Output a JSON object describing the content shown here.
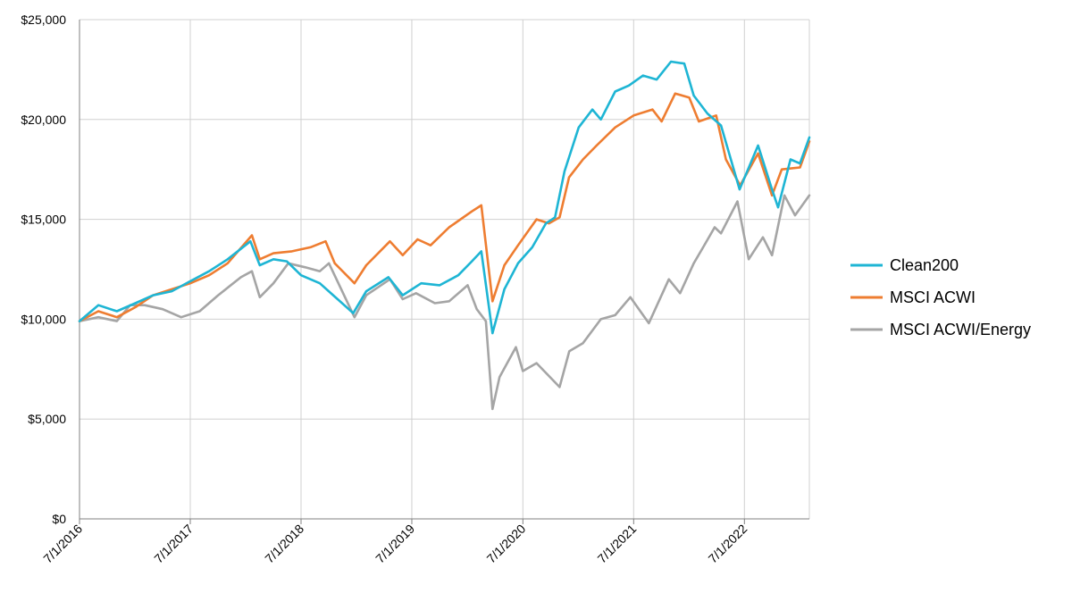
{
  "chart_data": {
    "type": "line",
    "title": "",
    "xlabel": "",
    "ylabel": "",
    "x_ticks": [
      "7/1/2016",
      "7/1/2017",
      "7/1/2018",
      "7/1/2019",
      "7/1/2020",
      "7/1/2021",
      "7/1/2022"
    ],
    "xlim": [
      "2016-07-01",
      "2023-01-31"
    ],
    "ylim": [
      0,
      25000
    ],
    "y_ticks": [
      {
        "value": 0,
        "label": "$0"
      },
      {
        "value": 5000,
        "label": "$5,000"
      },
      {
        "value": 10000,
        "label": "$10,000"
      },
      {
        "value": 15000,
        "label": "$15,000"
      },
      {
        "value": 20000,
        "label": "$20,000"
      },
      {
        "value": 25000,
        "label": "$25,000"
      }
    ],
    "grid": true,
    "legend_position": "right",
    "series": [
      {
        "name": "Clean200",
        "color": "#1eb5d4",
        "points": [
          [
            "2016-07-01",
            9900
          ],
          [
            "2016-09-01",
            10700
          ],
          [
            "2016-11-01",
            10400
          ],
          [
            "2017-01-01",
            10800
          ],
          [
            "2017-03-01",
            11200
          ],
          [
            "2017-05-01",
            11400
          ],
          [
            "2017-07-01",
            11900
          ],
          [
            "2017-09-01",
            12400
          ],
          [
            "2017-11-01",
            13000
          ],
          [
            "2018-01-15",
            13900
          ],
          [
            "2018-02-15",
            12700
          ],
          [
            "2018-04-01",
            13000
          ],
          [
            "2018-05-15",
            12900
          ],
          [
            "2018-07-01",
            12200
          ],
          [
            "2018-09-01",
            11800
          ],
          [
            "2018-10-15",
            11200
          ],
          [
            "2018-12-20",
            10300
          ],
          [
            "2019-02-01",
            11400
          ],
          [
            "2019-04-15",
            12100
          ],
          [
            "2019-06-01",
            11200
          ],
          [
            "2019-08-01",
            11800
          ],
          [
            "2019-10-01",
            11700
          ],
          [
            "2019-12-01",
            12200
          ],
          [
            "2020-01-15",
            12900
          ],
          [
            "2020-02-15",
            13400
          ],
          [
            "2020-03-23",
            9300
          ],
          [
            "2020-05-01",
            11500
          ],
          [
            "2020-06-15",
            12800
          ],
          [
            "2020-08-01",
            13600
          ],
          [
            "2020-09-15",
            14800
          ],
          [
            "2020-10-15",
            15100
          ],
          [
            "2020-11-15",
            17400
          ],
          [
            "2021-01-01",
            19600
          ],
          [
            "2021-02-15",
            20500
          ],
          [
            "2021-03-15",
            20000
          ],
          [
            "2021-05-01",
            21400
          ],
          [
            "2021-06-15",
            21700
          ],
          [
            "2021-08-01",
            22200
          ],
          [
            "2021-09-15",
            22000
          ],
          [
            "2021-11-01",
            22900
          ],
          [
            "2021-12-15",
            22800
          ],
          [
            "2022-01-15",
            21200
          ],
          [
            "2022-03-01",
            20300
          ],
          [
            "2022-04-15",
            19700
          ],
          [
            "2022-06-15",
            16500
          ],
          [
            "2022-08-15",
            18700
          ],
          [
            "2022-09-30",
            16500
          ],
          [
            "2022-10-20",
            15600
          ],
          [
            "2022-11-30",
            18000
          ],
          [
            "2022-12-31",
            17800
          ],
          [
            "2023-01-31",
            19100
          ]
        ]
      },
      {
        "name": "MSCI ACWI",
        "color": "#ee7d31",
        "points": [
          [
            "2016-07-01",
            9900
          ],
          [
            "2016-09-01",
            10400
          ],
          [
            "2016-11-01",
            10100
          ],
          [
            "2017-01-01",
            10600
          ],
          [
            "2017-03-01",
            11200
          ],
          [
            "2017-05-01",
            11500
          ],
          [
            "2017-07-01",
            11800
          ],
          [
            "2017-09-01",
            12200
          ],
          [
            "2017-11-01",
            12800
          ],
          [
            "2018-01-20",
            14200
          ],
          [
            "2018-02-15",
            13000
          ],
          [
            "2018-04-01",
            13300
          ],
          [
            "2018-06-01",
            13400
          ],
          [
            "2018-08-01",
            13600
          ],
          [
            "2018-09-20",
            13900
          ],
          [
            "2018-10-20",
            12800
          ],
          [
            "2018-12-24",
            11800
          ],
          [
            "2019-02-01",
            12700
          ],
          [
            "2019-04-20",
            13900
          ],
          [
            "2019-06-01",
            13200
          ],
          [
            "2019-07-20",
            14000
          ],
          [
            "2019-09-01",
            13700
          ],
          [
            "2019-11-01",
            14600
          ],
          [
            "2020-01-15",
            15400
          ],
          [
            "2020-02-15",
            15700
          ],
          [
            "2020-03-23",
            10900
          ],
          [
            "2020-05-01",
            12700
          ],
          [
            "2020-06-15",
            13700
          ],
          [
            "2020-08-15",
            15000
          ],
          [
            "2020-09-25",
            14800
          ],
          [
            "2020-10-30",
            15100
          ],
          [
            "2020-11-30",
            17100
          ],
          [
            "2021-01-15",
            18000
          ],
          [
            "2021-03-01",
            18700
          ],
          [
            "2021-05-01",
            19600
          ],
          [
            "2021-07-01",
            20200
          ],
          [
            "2021-09-01",
            20500
          ],
          [
            "2021-10-01",
            19900
          ],
          [
            "2021-11-15",
            21300
          ],
          [
            "2021-12-31",
            21100
          ],
          [
            "2022-02-01",
            19900
          ],
          [
            "2022-03-30",
            20200
          ],
          [
            "2022-05-01",
            18000
          ],
          [
            "2022-06-17",
            16700
          ],
          [
            "2022-08-15",
            18300
          ],
          [
            "2022-09-30",
            16200
          ],
          [
            "2022-11-01",
            17500
          ],
          [
            "2022-12-31",
            17600
          ],
          [
            "2023-01-31",
            18900
          ]
        ]
      },
      {
        "name": "MSCI ACWI/Energy",
        "color": "#a5a5a5",
        "points": [
          [
            "2016-07-01",
            9900
          ],
          [
            "2016-09-01",
            10100
          ],
          [
            "2016-11-01",
            9900
          ],
          [
            "2016-12-15",
            10700
          ],
          [
            "2017-02-01",
            10700
          ],
          [
            "2017-04-01",
            10500
          ],
          [
            "2017-06-01",
            10100
          ],
          [
            "2017-08-01",
            10400
          ],
          [
            "2017-10-01",
            11200
          ],
          [
            "2017-12-15",
            12100
          ],
          [
            "2018-01-20",
            12400
          ],
          [
            "2018-02-15",
            11100
          ],
          [
            "2018-04-01",
            11800
          ],
          [
            "2018-05-20",
            12800
          ],
          [
            "2018-07-15",
            12600
          ],
          [
            "2018-09-01",
            12400
          ],
          [
            "2018-10-01",
            12800
          ],
          [
            "2018-12-24",
            10100
          ],
          [
            "2019-02-01",
            11200
          ],
          [
            "2019-04-20",
            12000
          ],
          [
            "2019-06-01",
            11000
          ],
          [
            "2019-07-15",
            11300
          ],
          [
            "2019-09-15",
            10800
          ],
          [
            "2019-11-01",
            10900
          ],
          [
            "2020-01-01",
            11700
          ],
          [
            "2020-01-31",
            10500
          ],
          [
            "2020-03-01",
            9900
          ],
          [
            "2020-03-23",
            5500
          ],
          [
            "2020-04-15",
            7100
          ],
          [
            "2020-06-08",
            8600
          ],
          [
            "2020-07-01",
            7400
          ],
          [
            "2020-08-15",
            7800
          ],
          [
            "2020-10-30",
            6600
          ],
          [
            "2020-12-01",
            8400
          ],
          [
            "2021-01-15",
            8800
          ],
          [
            "2021-03-15",
            10000
          ],
          [
            "2021-05-01",
            10200
          ],
          [
            "2021-06-20",
            11100
          ],
          [
            "2021-08-20",
            9800
          ],
          [
            "2021-10-25",
            12000
          ],
          [
            "2021-12-01",
            11300
          ],
          [
            "2022-01-15",
            12800
          ],
          [
            "2022-02-15",
            13600
          ],
          [
            "2022-03-25",
            14600
          ],
          [
            "2022-04-15",
            14300
          ],
          [
            "2022-06-08",
            15900
          ],
          [
            "2022-07-15",
            13000
          ],
          [
            "2022-08-31",
            14100
          ],
          [
            "2022-09-30",
            13200
          ],
          [
            "2022-11-10",
            16200
          ],
          [
            "2022-12-15",
            15200
          ],
          [
            "2023-01-31",
            16200
          ]
        ]
      }
    ]
  }
}
